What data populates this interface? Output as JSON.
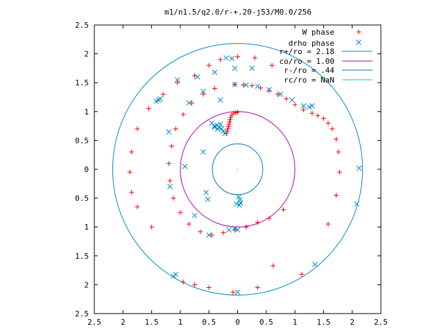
{
  "chart_data": {
    "type": "scatter",
    "title": "m1/n1.5/q2.0/r-+.20-j53/M0.0/256",
    "xlabel": "",
    "ylabel": "",
    "xlim": [
      -2.5,
      2.5
    ],
    "ylim": [
      -2.5,
      2.5
    ],
    "x_ticks": [
      {
        "value": -2.5,
        "label": "2.5"
      },
      {
        "value": -2.0,
        "label": "2"
      },
      {
        "value": -1.5,
        "label": "1.5"
      },
      {
        "value": -1.0,
        "label": "1"
      },
      {
        "value": -0.5,
        "label": "0.5"
      },
      {
        "value": 0.0,
        "label": "0"
      },
      {
        "value": 0.5,
        "label": "0.5"
      },
      {
        "value": 1.0,
        "label": "1"
      },
      {
        "value": 1.5,
        "label": "1.5"
      },
      {
        "value": 2.0,
        "label": "2"
      },
      {
        "value": 2.5,
        "label": "2.5"
      }
    ],
    "y_ticks": [
      {
        "value": 2.5,
        "label": "2.5"
      },
      {
        "value": 2.0,
        "label": "2"
      },
      {
        "value": 1.5,
        "label": "1.5"
      },
      {
        "value": 1.0,
        "label": "1"
      },
      {
        "value": 0.5,
        "label": "0.5"
      },
      {
        "value": 0.0,
        "label": "0"
      },
      {
        "value": -0.5,
        "label": "0.5"
      },
      {
        "value": -1.0,
        "label": "1"
      },
      {
        "value": -1.5,
        "label": "1.5"
      },
      {
        "value": -2.0,
        "label": "2"
      },
      {
        "value": -2.5,
        "label": "2.5"
      }
    ],
    "grid": false,
    "legend_position": "top-right",
    "series": [
      {
        "name": "W phase",
        "marker": "plus",
        "color": "#ff0000",
        "points": [
          [
            -0.2,
            0.62
          ],
          [
            -0.18,
            0.66
          ],
          [
            -0.17,
            0.7
          ],
          [
            -0.16,
            0.74
          ],
          [
            -0.15,
            0.78
          ],
          [
            -0.14,
            0.82
          ],
          [
            -0.13,
            0.86
          ],
          [
            -0.12,
            0.9
          ],
          [
            -0.1,
            0.94
          ],
          [
            -0.07,
            0.97
          ],
          [
            -0.03,
            0.98
          ],
          [
            0.0,
            0.99
          ],
          [
            -0.05,
            1.47
          ],
          [
            0.1,
            1.46
          ],
          [
            0.25,
            1.45
          ],
          [
            0.4,
            1.41
          ],
          [
            0.55,
            1.36
          ],
          [
            0.7,
            1.3
          ],
          [
            0.85,
            1.22
          ],
          [
            1.0,
            1.12
          ],
          [
            1.15,
            1.03
          ],
          [
            1.3,
            0.97
          ],
          [
            1.4,
            0.93
          ],
          [
            1.5,
            0.88
          ],
          [
            1.58,
            0.8
          ],
          [
            1.65,
            0.7
          ],
          [
            1.72,
            0.52
          ],
          [
            1.76,
            0.3
          ],
          [
            1.78,
            -0.05
          ],
          [
            1.72,
            -0.45
          ],
          [
            1.58,
            -0.95
          ],
          [
            1.12,
            -1.82
          ],
          [
            0.62,
            -1.67
          ],
          [
            0.35,
            -2.05
          ],
          [
            -0.08,
            -2.13
          ],
          [
            -0.4,
            1.4
          ],
          [
            -0.6,
            1.3
          ],
          [
            -0.8,
            1.15
          ],
          [
            -0.95,
            0.95
          ],
          [
            -1.08,
            0.7
          ],
          [
            -1.15,
            0.4
          ],
          [
            -1.2,
            0.1
          ],
          [
            -1.18,
            -0.2
          ],
          [
            -1.12,
            -0.5
          ],
          [
            -1.0,
            -0.75
          ],
          [
            -0.85,
            -0.95
          ],
          [
            -0.65,
            -1.08
          ],
          [
            -0.45,
            -1.14
          ],
          [
            -0.25,
            -1.1
          ],
          [
            -0.05,
            -1.05
          ],
          [
            0.15,
            -1.0
          ],
          [
            0.35,
            -0.92
          ],
          [
            0.55,
            -0.85
          ],
          [
            0.8,
            -0.7
          ],
          [
            -0.75,
            1.62
          ],
          [
            -1.05,
            1.5
          ],
          [
            -1.3,
            1.3
          ],
          [
            -1.55,
            1.05
          ],
          [
            -1.75,
            0.7
          ],
          [
            -1.85,
            0.3
          ],
          [
            -1.88,
            -0.05
          ],
          [
            -1.85,
            -0.4
          ],
          [
            -1.75,
            -0.65
          ],
          [
            -1.5,
            -1.0
          ],
          [
            -0.95,
            -1.95
          ],
          [
            -0.75,
            -2.0
          ],
          [
            -0.5,
            -2.05
          ],
          [
            -0.5,
            1.8
          ],
          [
            -0.3,
            1.9
          ],
          [
            0.0,
            1.95
          ],
          [
            0.3,
            1.93
          ],
          [
            0.6,
            1.8
          ]
        ]
      },
      {
        "name": "drho phase",
        "marker": "cross",
        "color": "#0088cc",
        "points": [
          [
            -0.45,
            0.8
          ],
          [
            -0.4,
            0.73
          ],
          [
            -0.36,
            0.76
          ],
          [
            -0.32,
            0.72
          ],
          [
            -0.28,
            0.7
          ],
          [
            -0.25,
            0.66
          ],
          [
            -0.22,
            0.62
          ],
          [
            -0.3,
            0.78
          ],
          [
            -0.35,
            0.7
          ],
          [
            0.02,
            -0.48
          ],
          [
            0.04,
            -0.53
          ],
          [
            0.05,
            -0.58
          ],
          [
            0.03,
            -0.62
          ],
          [
            -0.02,
            -0.6
          ],
          [
            -0.6,
            0.3
          ],
          [
            -0.55,
            -0.4
          ],
          [
            -0.4,
            0.75
          ],
          [
            -0.92,
            0.05
          ],
          [
            -0.05,
            1.47
          ],
          [
            0.15,
            1.46
          ],
          [
            0.35,
            1.44
          ],
          [
            0.55,
            1.38
          ],
          [
            0.75,
            1.3
          ],
          [
            0.95,
            1.2
          ],
          [
            1.15,
            1.1
          ],
          [
            1.25,
            1.08
          ],
          [
            1.3,
            1.1
          ],
          [
            -0.3,
            1.2
          ],
          [
            -0.6,
            1.35
          ],
          [
            -0.85,
            1.15
          ],
          [
            -1.2,
            0.65
          ],
          [
            -1.18,
            -0.3
          ],
          [
            -0.5,
            -1.14
          ],
          [
            -0.15,
            -1.05
          ],
          [
            -0.05,
            -1.02
          ],
          [
            0.0,
            -1.05
          ],
          [
            -0.05,
            1.75
          ],
          [
            -0.4,
            1.68
          ],
          [
            -0.7,
            1.6
          ],
          [
            -1.05,
            1.55
          ],
          [
            -1.35,
            1.22
          ],
          [
            -1.38,
            1.2
          ],
          [
            -1.42,
            1.18
          ],
          [
            0.25,
            1.75
          ],
          [
            -0.1,
            1.92
          ],
          [
            -0.2,
            1.93
          ],
          [
            2.12,
            0.02
          ],
          [
            2.08,
            -0.6
          ],
          [
            1.35,
            -1.65
          ],
          [
            -1.08,
            -1.82
          ],
          [
            -1.12,
            -1.85
          ],
          [
            0.0,
            -2.13
          ],
          [
            -0.52,
            -0.52
          ],
          [
            -0.75,
            -0.8
          ]
        ]
      }
    ],
    "circles": [
      {
        "name": "r+/ro = 2.18",
        "radius": 2.18,
        "color": "#0088cc"
      },
      {
        "name": "co/ro = 1.00",
        "radius": 1.0,
        "color": "#aa00aa"
      },
      {
        "name": "r-/ro = .44",
        "radius": 0.44,
        "color": "#0077bb"
      },
      {
        "name": "rc/ro = NaN",
        "radius": null,
        "color": "#00cccc"
      }
    ]
  }
}
